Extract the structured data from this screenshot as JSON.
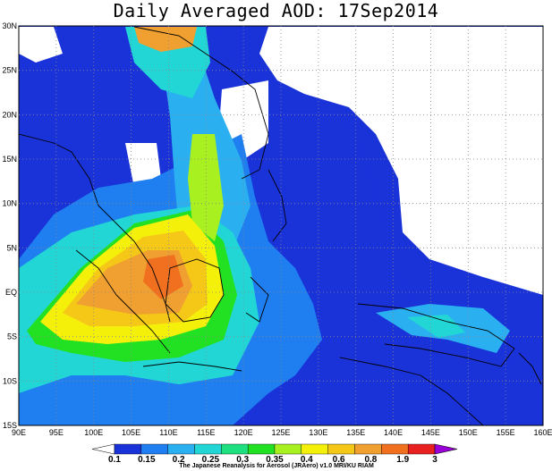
{
  "title": "Daily Averaged AOD: 17Sep2014",
  "map": {
    "lon_range": [
      90,
      160
    ],
    "lat_range": [
      -15,
      30
    ],
    "lon_labels": [
      "90E",
      "95E",
      "100E",
      "105E",
      "110E",
      "115E",
      "120E",
      "125E",
      "130E",
      "135E",
      "140E",
      "145E",
      "150E",
      "155E",
      "160E"
    ],
    "lat_labels": [
      "15S",
      "10S",
      "5S",
      "EQ",
      "5N",
      "10N",
      "15N",
      "20N",
      "25N",
      "30N"
    ],
    "gridlines": "dotted"
  },
  "colorbar": {
    "levels": [
      "0.1",
      "0.15",
      "0.2",
      "0.25",
      "0.3",
      "0.35",
      "0.4",
      "0.6",
      "0.8",
      "1.9",
      "3"
    ],
    "colors": [
      "#ffffff",
      "#1a33d9",
      "#1f7ef0",
      "#2ab0f0",
      "#22d6d6",
      "#1fe07f",
      "#22e022",
      "#a8f020",
      "#f5f00a",
      "#f5c818",
      "#f0a030",
      "#f07020",
      "#e82020",
      "#9a00d8"
    ]
  },
  "credit": "The Japanese Reanalysis for Aerosol (JRAero) v1.0  MRI/KU RIAM"
}
